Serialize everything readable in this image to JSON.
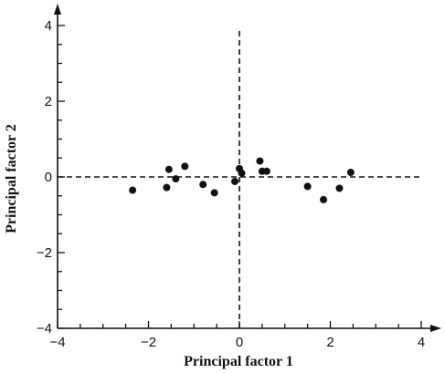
{
  "chart_data": {
    "type": "scatter",
    "xlabel": "Principal factor 1",
    "ylabel": "Principal factor 2",
    "xlim": [
      -4,
      4
    ],
    "ylim": [
      -4,
      4
    ],
    "x_ticks": [
      -4,
      -2,
      0,
      2,
      4
    ],
    "x_tick_labels": [
      "−4",
      "−2",
      "0",
      "2",
      "4"
    ],
    "y_ticks": [
      -4,
      -2,
      0,
      2,
      4
    ],
    "y_tick_labels": [
      "−4",
      "−2",
      "0",
      "2",
      "4"
    ],
    "minor_tick_step": 0.5,
    "reference_lines": {
      "x": 0,
      "y": 0,
      "style": "dashed"
    },
    "grid": false,
    "points": [
      {
        "x": -2.35,
        "y": -0.35
      },
      {
        "x": -1.6,
        "y": -0.28
      },
      {
        "x": -1.55,
        "y": 0.2
      },
      {
        "x": -1.4,
        "y": -0.05
      },
      {
        "x": -1.2,
        "y": 0.28
      },
      {
        "x": -0.8,
        "y": -0.2
      },
      {
        "x": -0.55,
        "y": -0.42
      },
      {
        "x": -0.1,
        "y": -0.12
      },
      {
        "x": 0.0,
        "y": 0.22
      },
      {
        "x": 0.05,
        "y": 0.1
      },
      {
        "x": 0.45,
        "y": 0.42
      },
      {
        "x": 0.5,
        "y": 0.15
      },
      {
        "x": 0.6,
        "y": 0.15
      },
      {
        "x": 1.5,
        "y": -0.25
      },
      {
        "x": 1.85,
        "y": -0.6
      },
      {
        "x": 2.2,
        "y": -0.3
      },
      {
        "x": 2.45,
        "y": 0.12
      }
    ],
    "colors": {
      "ink": "#111111"
    }
  }
}
